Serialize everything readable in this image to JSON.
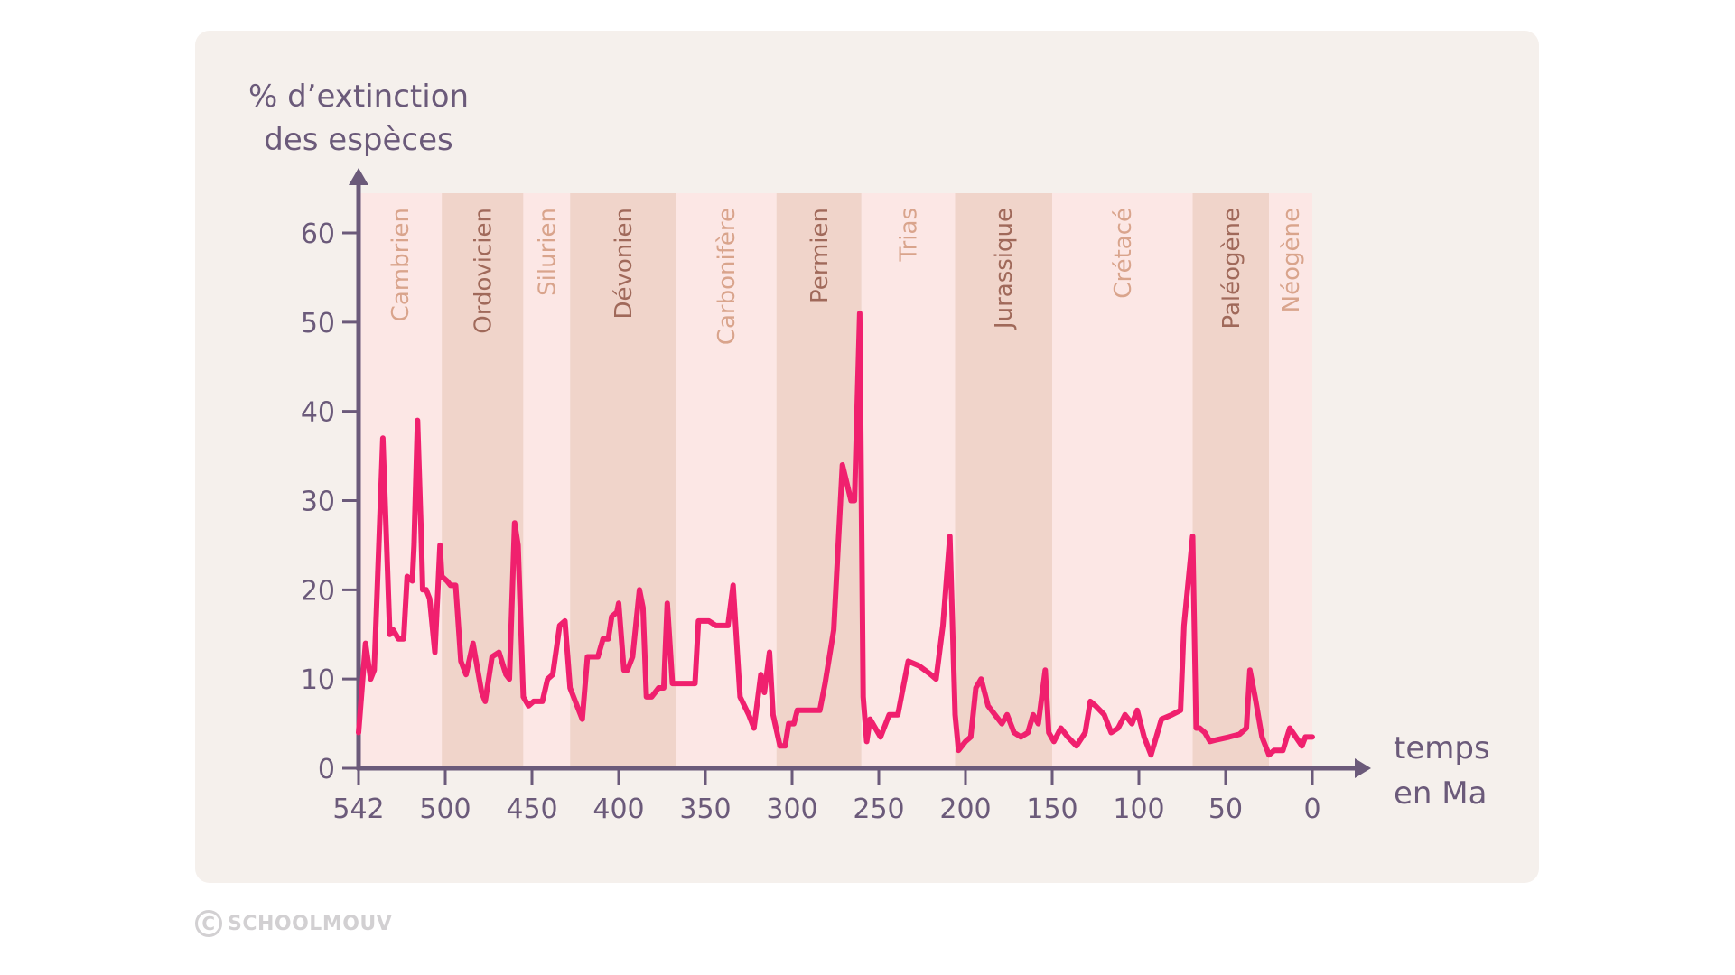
{
  "chart_data": {
    "type": "line",
    "title": "",
    "ylabel": [
      "% d’extinction",
      "des espèces"
    ],
    "xlabel": [
      "temps",
      "en Ma"
    ],
    "xlim": [
      550,
      0
    ],
    "ylim": [
      0,
      65
    ],
    "x_ticks": [
      {
        "value": 550,
        "label": "542"
      },
      {
        "value": 500,
        "label": "500"
      },
      {
        "value": 450,
        "label": "450"
      },
      {
        "value": 400,
        "label": "400"
      },
      {
        "value": 350,
        "label": "350"
      },
      {
        "value": 300,
        "label": "300"
      },
      {
        "value": 250,
        "label": "250"
      },
      {
        "value": 200,
        "label": "200"
      },
      {
        "value": 150,
        "label": "150"
      },
      {
        "value": 100,
        "label": "100"
      },
      {
        "value": 50,
        "label": "50"
      },
      {
        "value": 0,
        "label": "0"
      }
    ],
    "y_ticks": [
      0,
      10,
      20,
      30,
      40,
      50,
      60
    ],
    "grid": false,
    "line_color": "#f0206e",
    "periods": [
      {
        "name": "Cambrien",
        "start": 550,
        "end": 502,
        "shade": "light"
      },
      {
        "name": "Ordovicien",
        "start": 502,
        "end": 455,
        "shade": "dark"
      },
      {
        "name": "Silurien",
        "start": 455,
        "end": 428,
        "shade": "light"
      },
      {
        "name": "Dévonien",
        "start": 428,
        "end": 367,
        "shade": "dark"
      },
      {
        "name": "Carbonifère",
        "start": 367,
        "end": 309,
        "shade": "light"
      },
      {
        "name": "Permien",
        "start": 309,
        "end": 260,
        "shade": "dark"
      },
      {
        "name": "Trias",
        "start": 260,
        "end": 206,
        "shade": "light"
      },
      {
        "name": "Jurassique",
        "start": 206,
        "end": 150,
        "shade": "dark"
      },
      {
        "name": "Crétacé",
        "start": 150,
        "end": 69,
        "shade": "light"
      },
      {
        "name": "Paléogène",
        "start": 69,
        "end": 25,
        "shade": "dark"
      },
      {
        "name": "Néogène",
        "start": 25,
        "end": 0,
        "shade": "light"
      }
    ],
    "series": [
      {
        "name": "% d’extinction des espèces",
        "x": [
          550,
          546,
          543,
          541,
          536,
          532,
          530,
          527,
          524,
          522,
          519,
          518,
          516,
          514,
          513,
          511,
          509,
          506,
          503,
          502,
          499,
          497,
          494,
          491,
          488,
          484,
          479,
          477,
          473,
          469,
          465,
          463,
          460,
          458,
          455,
          452,
          449,
          444,
          441,
          438,
          434,
          431,
          428,
          424,
          421,
          418,
          412,
          409,
          406,
          404,
          401,
          400,
          397,
          395,
          392,
          388,
          386,
          384,
          381,
          377,
          374,
          372,
          369,
          362,
          358,
          356,
          354,
          348,
          344,
          340,
          337,
          334,
          330,
          325,
          322,
          318,
          316,
          313,
          311,
          307,
          304,
          302,
          299,
          297,
          291,
          287,
          284,
          281,
          276,
          271,
          266,
          264,
          261,
          259,
          257,
          255,
          249,
          244,
          239,
          233,
          227,
          220,
          217,
          213,
          209,
          206,
          204,
          200,
          197,
          194,
          191,
          187,
          183,
          179,
          176,
          172,
          168,
          164,
          161,
          158,
          154,
          152,
          149,
          145,
          141,
          136,
          131,
          128,
          125,
          120,
          116,
          112,
          108,
          104,
          101,
          97,
          93,
          87,
          81,
          76,
          74,
          69,
          67,
          65,
          62,
          59,
          55,
          48,
          42,
          38,
          36,
          33,
          29,
          25,
          22,
          17,
          13,
          6,
          4,
          0
        ],
        "y": [
          4,
          14,
          10,
          11,
          37,
          15,
          15.5,
          14.5,
          14.5,
          21.5,
          21,
          25,
          39,
          27,
          20,
          20,
          19,
          13,
          25,
          21.5,
          21,
          20.5,
          20.5,
          12,
          10.5,
          14,
          8.5,
          7.5,
          12.5,
          13,
          10.5,
          10,
          27.5,
          25,
          8,
          7,
          7.5,
          7.5,
          10,
          10.5,
          16,
          16.5,
          9,
          7,
          5.5,
          12.5,
          12.5,
          14.5,
          14.5,
          17,
          17.5,
          18.5,
          11,
          11,
          12.5,
          20,
          18,
          8,
          8,
          9,
          9,
          18.5,
          9.5,
          9.5,
          9.5,
          9.5,
          16.5,
          16.5,
          16,
          16,
          16,
          20.5,
          8,
          6,
          4.5,
          10.5,
          8.5,
          13,
          6,
          2.5,
          2.5,
          5,
          5,
          6.5,
          6.5,
          6.5,
          6.5,
          9.5,
          15.5,
          34,
          30,
          30,
          51,
          8,
          3,
          5.5,
          3.5,
          6,
          6,
          12,
          11.5,
          10.5,
          10,
          16,
          26,
          6,
          2,
          3,
          3.5,
          9,
          10,
          7,
          6,
          5,
          6,
          4,
          3.5,
          4,
          6,
          5,
          11,
          4,
          3,
          4.5,
          3.5,
          2.5,
          4,
          7.5,
          7,
          6,
          4,
          4.5,
          6,
          5,
          6.5,
          3.5,
          1.5,
          5.5,
          6,
          6.5,
          16,
          26,
          4.5,
          4.5,
          4,
          3,
          3.2,
          3.5,
          3.8,
          4.5,
          11,
          8,
          3.5,
          1.5,
          2,
          2,
          4.5,
          2.5,
          3.5,
          3.5
        ]
      }
    ]
  },
  "colors": {
    "card_bg": "#f5f0ec",
    "band_light": "#fce7e5",
    "band_dark": "#f0d4ca",
    "label_light": "#d9a48c",
    "label_dark": "#a0695a",
    "axis": "#6b5a7a",
    "line": "#f0206e"
  },
  "footer": {
    "copyright_symbol": "C",
    "brand": "SCHOOLMOUV"
  }
}
